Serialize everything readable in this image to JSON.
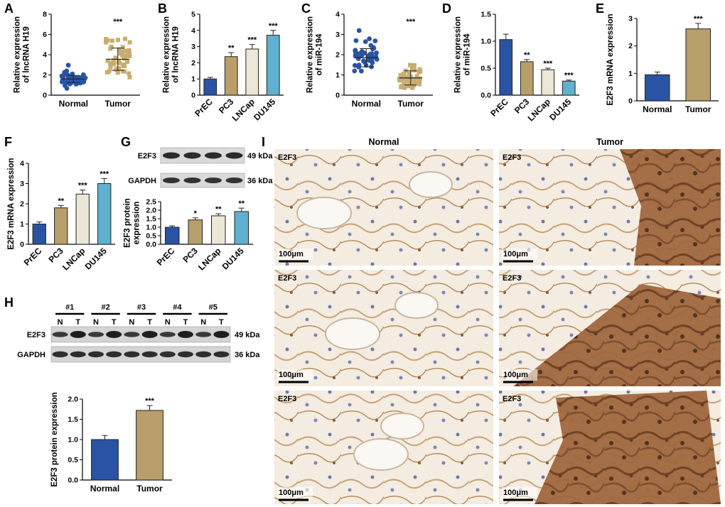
{
  "colors": {
    "navy": "#2a54a3",
    "tan": "#b89e6a",
    "cream": "#ebe6d6",
    "sky": "#5fb1cf",
    "normal_dot": "#2a54a3",
    "tumor_dot": "#c8ad70"
  },
  "chart_data": [
    {
      "panel": "A",
      "type": "scatter",
      "ylabel": "Relative expression\nof lncRNA H19",
      "categories": [
        "Normal",
        "Tumor"
      ],
      "ylim": [
        0,
        8
      ],
      "yticks": [
        0,
        2,
        4,
        6,
        8
      ],
      "means": [
        1.6,
        3.55
      ],
      "sd": [
        0.35,
        1.1
      ],
      "n": [
        50,
        50
      ],
      "significance": [
        "",
        "***"
      ]
    },
    {
      "panel": "B",
      "type": "bar",
      "ylabel": "Relative expression\nof lncRNA H19",
      "categories": [
        "PrEC",
        "PC3",
        "LNCap",
        "DU145"
      ],
      "values": [
        1.0,
        2.38,
        2.85,
        3.7
      ],
      "errors": [
        0.1,
        0.25,
        0.28,
        0.3
      ],
      "ylim": [
        0,
        5
      ],
      "yticks": [
        0,
        1,
        2,
        3,
        4,
        5
      ],
      "significance": [
        "",
        "**",
        "***",
        "***"
      ]
    },
    {
      "panel": "C",
      "type": "scatter",
      "ylabel": "Relative expression\nof miR-194",
      "categories": [
        "Normal",
        "Tumor"
      ],
      "ylim": [
        0,
        4
      ],
      "yticks": [
        0,
        1,
        2,
        3,
        4
      ],
      "means": [
        1.85,
        0.85
      ],
      "sd": [
        0.45,
        0.35
      ],
      "n": [
        50,
        50
      ],
      "significance": [
        "",
        "***"
      ]
    },
    {
      "panel": "D",
      "type": "bar",
      "ylabel": "Relative expression\nof miR-194",
      "categories": [
        "PrEC",
        "PC3",
        "LNCap",
        "DU145"
      ],
      "values": [
        1.03,
        0.62,
        0.47,
        0.26
      ],
      "errors": [
        0.1,
        0.04,
        0.03,
        0.02
      ],
      "ylim": [
        0,
        1.5
      ],
      "yticks": [
        0.0,
        0.5,
        1.0,
        1.5
      ],
      "significance": [
        "",
        "**",
        "***",
        "***"
      ]
    },
    {
      "panel": "E",
      "type": "bar",
      "ylabel": "E2F3 mRNA expression",
      "categories": [
        "Normal",
        "Tumor"
      ],
      "values": [
        0.95,
        2.62
      ],
      "errors": [
        0.1,
        0.2
      ],
      "ylim": [
        0,
        3
      ],
      "yticks": [
        0,
        1,
        2,
        3
      ],
      "significance": [
        "",
        "***"
      ]
    },
    {
      "panel": "F",
      "type": "bar",
      "ylabel": "E2F3 mRNA expression",
      "categories": [
        "PrEC",
        "PC3",
        "LNCap",
        "DU145"
      ],
      "values": [
        1.0,
        1.8,
        2.48,
        3.0
      ],
      "errors": [
        0.1,
        0.12,
        0.2,
        0.25
      ],
      "ylim": [
        0,
        4
      ],
      "yticks": [
        0,
        1,
        2,
        3,
        4
      ],
      "significance": [
        "",
        "**",
        "***",
        "***"
      ]
    },
    {
      "panel": "G",
      "type": "bar",
      "ylabel": "E2F3 protein\nexpression",
      "categories": [
        "PrEC",
        "PC3",
        "LNCap",
        "DU145"
      ],
      "values": [
        1.0,
        1.43,
        1.67,
        1.92
      ],
      "errors": [
        0.08,
        0.12,
        0.12,
        0.2
      ],
      "ylim": [
        0,
        2.5
      ],
      "yticks": [
        0.0,
        0.5,
        1.0,
        1.5,
        2.0,
        2.5
      ],
      "significance": [
        "",
        "*",
        "**",
        "**"
      ]
    },
    {
      "panel": "H",
      "type": "bar",
      "ylabel": "E2F3 protein expression",
      "categories": [
        "Normal",
        "Tumor"
      ],
      "values": [
        1.0,
        1.72
      ],
      "errors": [
        0.1,
        0.12
      ],
      "ylim": [
        0,
        2.0
      ],
      "yticks": [
        0.0,
        0.5,
        1.0,
        1.5,
        2.0
      ],
      "significance": [
        "",
        "***"
      ]
    }
  ],
  "blot_g": {
    "bands": [
      "E2F3",
      "GAPDH"
    ],
    "sizes": [
      "49 kDa",
      "36 kDa"
    ]
  },
  "blot_h": {
    "patients": [
      "#1",
      "#2",
      "#3",
      "#4",
      "#5"
    ],
    "lanes": [
      "N",
      "T",
      "N",
      "T",
      "N",
      "T",
      "N",
      "T",
      "N",
      "T"
    ],
    "bands": [
      "E2F3",
      "GAPDH"
    ],
    "sizes": [
      "49 kDa",
      "36 kDa"
    ]
  },
  "ihc": {
    "col_headers": [
      "Normal",
      "Tumor"
    ],
    "stain_label": "E2F3",
    "scale_bar": "100μm"
  },
  "panel_letters": [
    "A",
    "B",
    "C",
    "D",
    "E",
    "F",
    "G",
    "H",
    "I"
  ]
}
